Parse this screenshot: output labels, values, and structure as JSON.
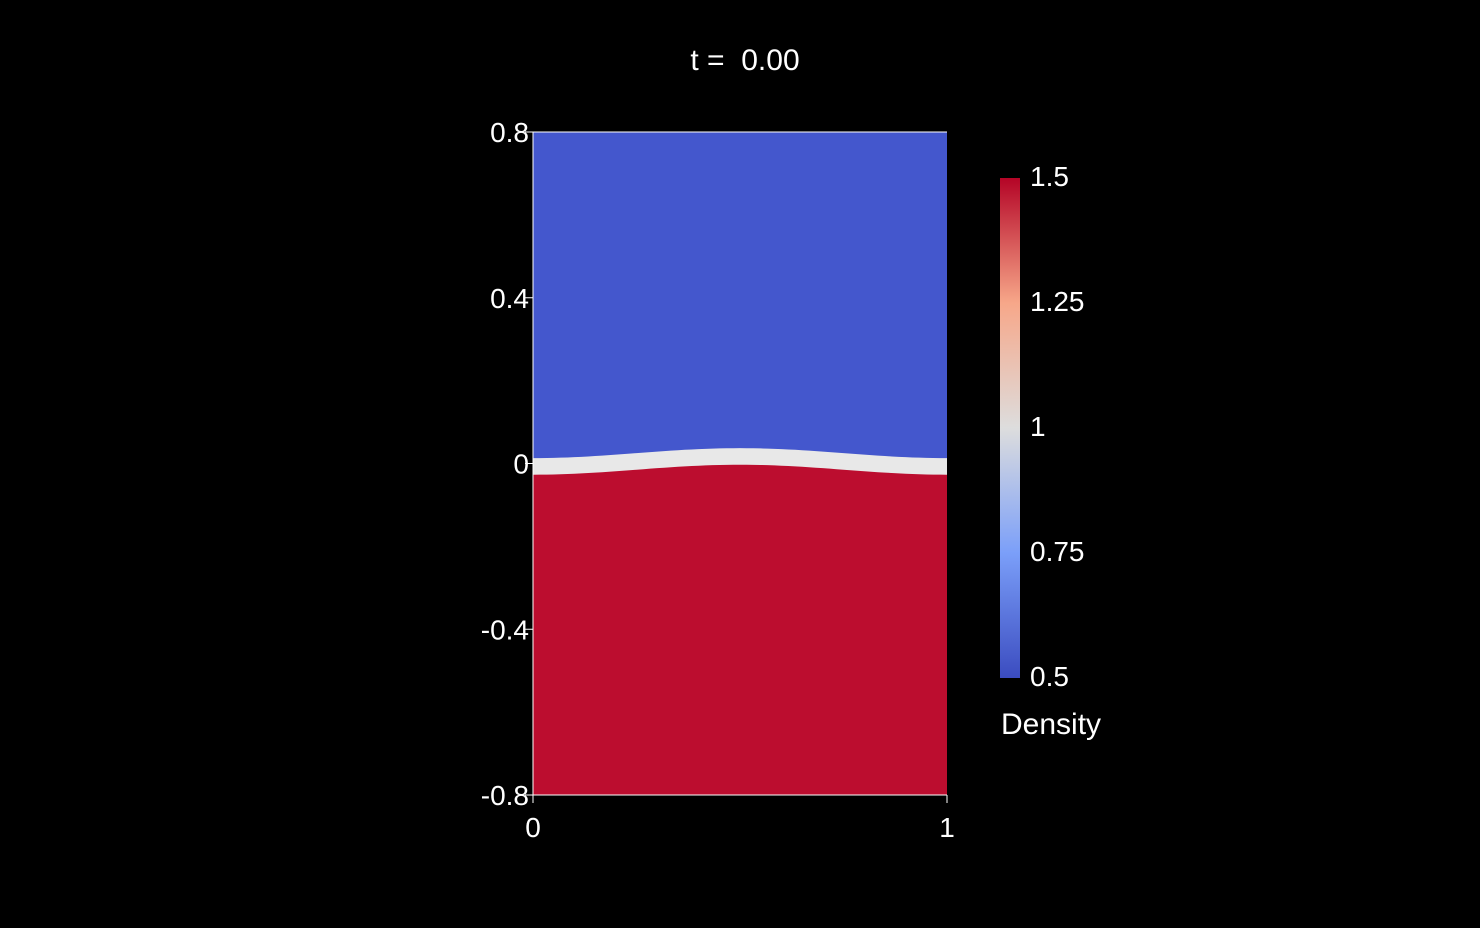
{
  "chart_data": {
    "type": "heatmap",
    "title": "t =  0.00",
    "xlim": [
      0,
      1
    ],
    "ylim": [
      -0.8,
      0.8
    ],
    "x_ticks": [
      {
        "value": 0,
        "label": "0"
      },
      {
        "value": 1,
        "label": "1"
      }
    ],
    "y_ticks": [
      {
        "value": 0.8,
        "label": "0.8"
      },
      {
        "value": 0.4,
        "label": "0.4"
      },
      {
        "value": 0,
        "label": "0"
      },
      {
        "value": -0.4,
        "label": "-0.4"
      },
      {
        "value": -0.8,
        "label": "-0.8"
      }
    ],
    "field": {
      "upper_value": 0.5,
      "lower_value": 1.5,
      "interface_value": 1.0,
      "interface_y_center": 0.005,
      "interface_amplitude": 0.012,
      "interface_thickness": 0.04
    },
    "colorbar": {
      "label": "Density",
      "min": 0.5,
      "max": 1.5,
      "ticks": [
        {
          "value": 1.5,
          "label": "1.5"
        },
        {
          "value": 1.25,
          "label": "1.25"
        },
        {
          "value": 1.0,
          "label": "1"
        },
        {
          "value": 0.75,
          "label": "0.75"
        },
        {
          "value": 0.5,
          "label": "0.5"
        }
      ],
      "colormap": [
        "#3b4cc0",
        "#7b9ff9",
        "#dddddd",
        "#f7a789",
        "#b40426"
      ]
    },
    "colors": {
      "upper_fill": "#4457cd",
      "lower_fill": "#bc0d2f",
      "interface_fill": "#e8e8e8",
      "background": "#000000",
      "axis": "#ffffff"
    }
  }
}
